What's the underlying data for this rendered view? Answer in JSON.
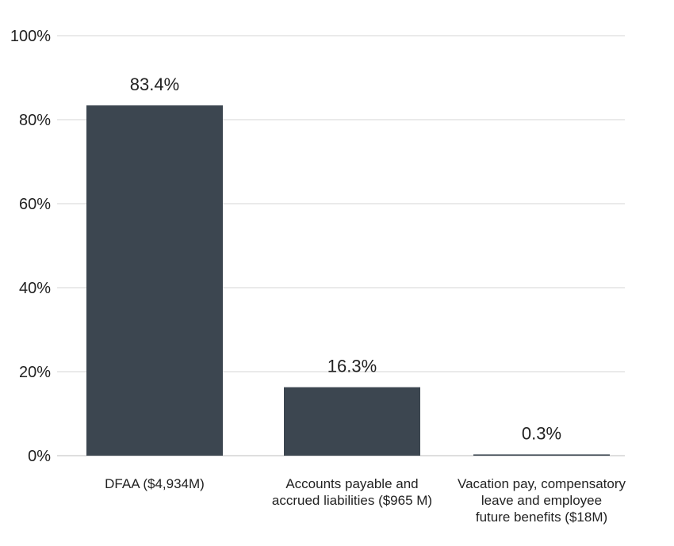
{
  "chart_data": {
    "type": "bar",
    "categories": [
      [
        "DFAA ($4,934M)"
      ],
      [
        "Accounts payable and",
        "accrued liabilities ($965 M)"
      ],
      [
        "Vacation pay, compensatory",
        "leave and employee",
        "future benefits ($18M)"
      ]
    ],
    "values": [
      83.4,
      16.3,
      0.3
    ],
    "value_labels": [
      "83.4%",
      "16.3%",
      "0.3%"
    ],
    "yticks": [
      0,
      20,
      40,
      60,
      80,
      100
    ],
    "ytick_labels": [
      "0%",
      "20%",
      "40%",
      "60%",
      "80%",
      "100%"
    ],
    "ylim": [
      0,
      100
    ],
    "title": "",
    "xlabel": "",
    "ylabel": "",
    "grid": true,
    "colors": {
      "bar": "#3c4650",
      "grid": "#d4d4d4"
    }
  }
}
